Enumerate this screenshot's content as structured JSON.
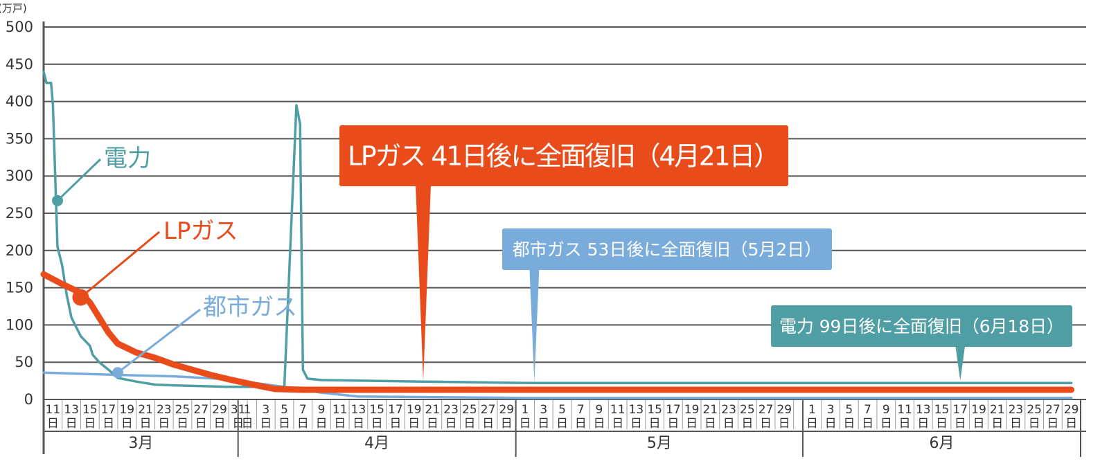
{
  "chart_data": {
    "type": "line",
    "y_unit": "(万戸)",
    "ylim": [
      0,
      500
    ],
    "y_ticks": [
      0,
      50,
      100,
      150,
      200,
      250,
      300,
      350,
      400,
      450,
      500
    ],
    "x_range": [
      "3/11",
      "6/30"
    ],
    "day_suffix": "日",
    "months": [
      {
        "label": "3月",
        "start_day": 11,
        "end_day": 31,
        "tick_days": [
          11,
          13,
          15,
          17,
          19,
          21,
          23,
          25,
          27,
          29,
          31
        ]
      },
      {
        "label": "4月",
        "start_day": 1,
        "end_day": 30,
        "tick_days": [
          1,
          3,
          5,
          7,
          9,
          11,
          13,
          15,
          17,
          19,
          21,
          23,
          25,
          27,
          29
        ]
      },
      {
        "label": "5月",
        "start_day": 1,
        "end_day": 31,
        "tick_days": [
          1,
          3,
          5,
          7,
          9,
          11,
          13,
          15,
          17,
          19,
          21,
          23,
          25,
          27,
          29
        ]
      },
      {
        "label": "6月",
        "start_day": 1,
        "end_day": 30,
        "tick_days": [
          1,
          3,
          5,
          7,
          9,
          11,
          13,
          15,
          17,
          19,
          21,
          23,
          25,
          27,
          29
        ]
      }
    ],
    "grid": true,
    "series": [
      {
        "name": "電力",
        "color": "#4f9ea3",
        "points": [
          {
            "x": "3/11",
            "y": 440
          },
          {
            "x": "3/11.3",
            "y": 425
          },
          {
            "x": "3/11.8",
            "y": 425
          },
          {
            "x": "3/12",
            "y": 395
          },
          {
            "x": "3/12.5",
            "y": 205
          },
          {
            "x": "3/13",
            "y": 180
          },
          {
            "x": "3/13.5",
            "y": 140
          },
          {
            "x": "3/14",
            "y": 110
          },
          {
            "x": "3/15",
            "y": 85
          },
          {
            "x": "3/16",
            "y": 72
          },
          {
            "x": "3/16.3",
            "y": 60
          },
          {
            "x": "3/17",
            "y": 50
          },
          {
            "x": "3/18",
            "y": 40
          },
          {
            "x": "3/19",
            "y": 29
          },
          {
            "x": "3/21",
            "y": 24
          },
          {
            "x": "3/23",
            "y": 20
          },
          {
            "x": "3/25",
            "y": 19
          },
          {
            "x": "3/31",
            "y": 17
          },
          {
            "x": "4/6",
            "y": 17
          },
          {
            "x": "4/7.3",
            "y": 395
          },
          {
            "x": "4/7.7",
            "y": 370
          },
          {
            "x": "4/8",
            "y": 40
          },
          {
            "x": "4/8.5",
            "y": 28
          },
          {
            "x": "4/10",
            "y": 26
          },
          {
            "x": "4/21",
            "y": 24
          },
          {
            "x": "5/3",
            "y": 22
          },
          {
            "x": "6/30",
            "y": 22
          }
        ],
        "marker": {
          "x": "3/12.5",
          "y": 267
        }
      },
      {
        "name": "LPガス",
        "color": "#e94b1a",
        "points": [
          {
            "x": "3/11",
            "y": 168
          },
          {
            "x": "3/13",
            "y": 155
          },
          {
            "x": "3/15",
            "y": 143
          },
          {
            "x": "3/16",
            "y": 130
          },
          {
            "x": "3/17",
            "y": 110
          },
          {
            "x": "3/18",
            "y": 90
          },
          {
            "x": "3/19",
            "y": 75
          },
          {
            "x": "3/21",
            "y": 63
          },
          {
            "x": "3/23",
            "y": 56
          },
          {
            "x": "3/25",
            "y": 47
          },
          {
            "x": "3/27",
            "y": 40
          },
          {
            "x": "3/29",
            "y": 33
          },
          {
            "x": "3/31",
            "y": 27
          },
          {
            "x": "4/3",
            "y": 19
          },
          {
            "x": "4/5",
            "y": 14
          },
          {
            "x": "4/8",
            "y": 13
          },
          {
            "x": "4/21",
            "y": 13
          },
          {
            "x": "6/30",
            "y": 13
          }
        ],
        "marker": {
          "x": "3/15",
          "y": 137
        }
      },
      {
        "name": "都市ガス",
        "color": "#7aacdb",
        "points": [
          {
            "x": "3/11",
            "y": 36
          },
          {
            "x": "3/19",
            "y": 33
          },
          {
            "x": "3/25",
            "y": 31
          },
          {
            "x": "3/31",
            "y": 27
          },
          {
            "x": "4/7",
            "y": 15
          },
          {
            "x": "4/10",
            "y": 9
          },
          {
            "x": "4/14",
            "y": 4
          },
          {
            "x": "5/2",
            "y": 2
          },
          {
            "x": "6/30",
            "y": 2
          }
        ],
        "marker": {
          "x": "3/19",
          "y": 36
        }
      }
    ],
    "annotations": [
      {
        "text": "LPガス 41日後に全面復旧（4月21日）",
        "pointer_x": "4/21",
        "color": "#e94b1a"
      },
      {
        "text": "都市ガス 53日後に全面復旧（5月2日）",
        "pointer_x": "5/3",
        "color": "#7aacdb"
      },
      {
        "text": "電力 99日後に全面復旧（6月18日）",
        "pointer_x": "6/18",
        "color": "#4f9ea3"
      }
    ]
  }
}
